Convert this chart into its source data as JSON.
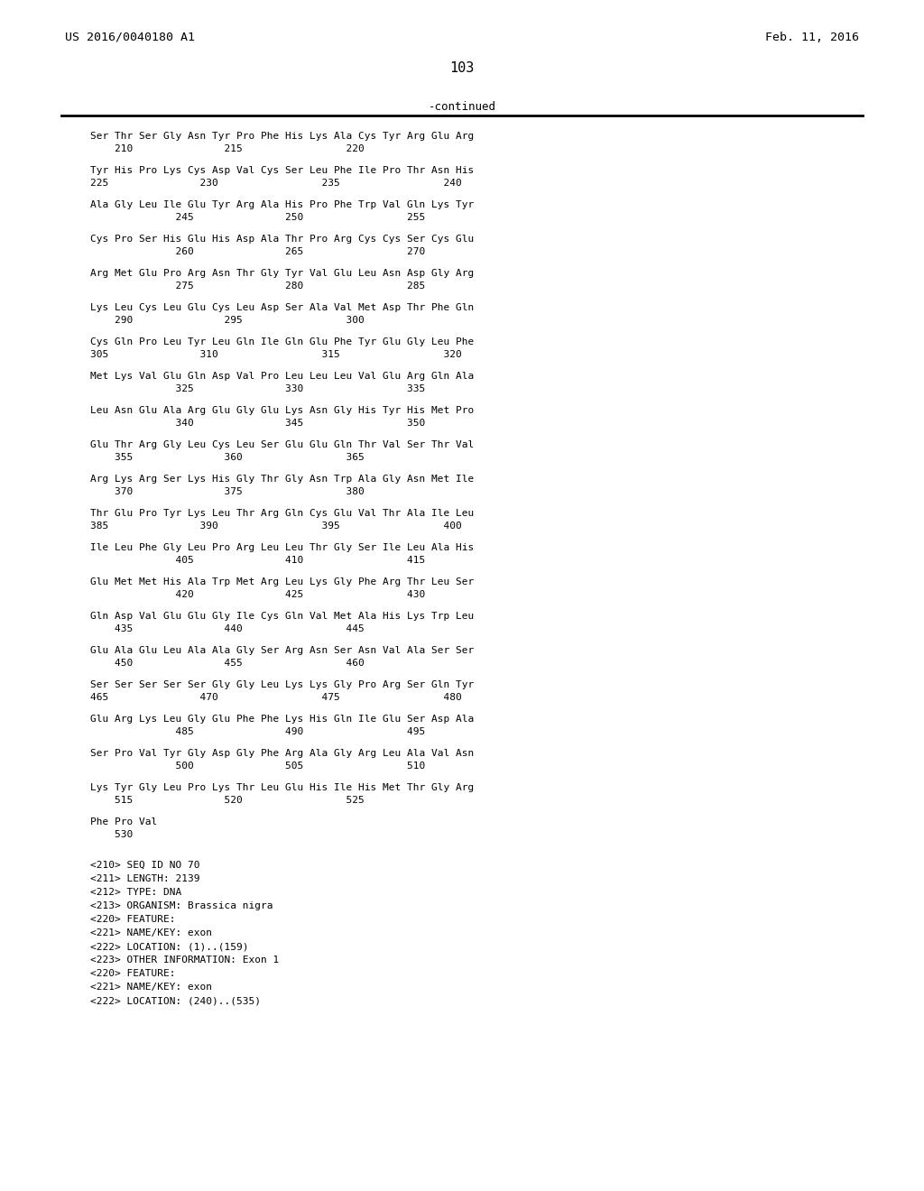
{
  "header_left": "US 2016/0040180 A1",
  "header_right": "Feb. 11, 2016",
  "page_number": "103",
  "continued_label": "-continued",
  "background_color": "#ffffff",
  "text_color": "#000000",
  "sequence_blocks": [
    [
      "Ser Thr Ser Gly Asn Tyr Pro Phe His Lys Ala Cys Tyr Arg Glu Arg",
      "    210               215                 220"
    ],
    [
      "Tyr His Pro Lys Cys Asp Val Cys Ser Leu Phe Ile Pro Thr Asn His",
      "225               230                 235                 240"
    ],
    [
      "Ala Gly Leu Ile Glu Tyr Arg Ala His Pro Phe Trp Val Gln Lys Tyr",
      "              245               250                 255"
    ],
    [
      "Cys Pro Ser His Glu His Asp Ala Thr Pro Arg Cys Cys Ser Cys Glu",
      "              260               265                 270"
    ],
    [
      "Arg Met Glu Pro Arg Asn Thr Gly Tyr Val Glu Leu Asn Asp Gly Arg",
      "              275               280                 285"
    ],
    [
      "Lys Leu Cys Leu Glu Cys Leu Asp Ser Ala Val Met Asp Thr Phe Gln",
      "    290               295                 300"
    ],
    [
      "Cys Gln Pro Leu Tyr Leu Gln Ile Gln Glu Phe Tyr Glu Gly Leu Phe",
      "305               310                 315                 320"
    ],
    [
      "Met Lys Val Glu Gln Asp Val Pro Leu Leu Leu Val Glu Arg Gln Ala",
      "              325               330                 335"
    ],
    [
      "Leu Asn Glu Ala Arg Glu Gly Glu Lys Asn Gly His Tyr His Met Pro",
      "              340               345                 350"
    ],
    [
      "Glu Thr Arg Gly Leu Cys Leu Ser Glu Glu Gln Thr Val Ser Thr Val",
      "    355               360                 365"
    ],
    [
      "Arg Lys Arg Ser Lys His Gly Thr Gly Asn Trp Ala Gly Asn Met Ile",
      "    370               375                 380"
    ],
    [
      "Thr Glu Pro Tyr Lys Leu Thr Arg Gln Cys Glu Val Thr Ala Ile Leu",
      "385               390                 395                 400"
    ],
    [
      "Ile Leu Phe Gly Leu Pro Arg Leu Leu Thr Gly Ser Ile Leu Ala His",
      "              405               410                 415"
    ],
    [
      "Glu Met Met His Ala Trp Met Arg Leu Lys Gly Phe Arg Thr Leu Ser",
      "              420               425                 430"
    ],
    [
      "Gln Asp Val Glu Glu Gly Ile Cys Gln Val Met Ala His Lys Trp Leu",
      "    435               440                 445"
    ],
    [
      "Glu Ala Glu Leu Ala Ala Gly Ser Arg Asn Ser Asn Val Ala Ser Ser",
      "    450               455                 460"
    ],
    [
      "Ser Ser Ser Ser Ser Gly Gly Leu Lys Lys Gly Pro Arg Ser Gln Tyr",
      "465               470                 475                 480"
    ],
    [
      "Glu Arg Lys Leu Gly Glu Phe Phe Lys His Gln Ile Glu Ser Asp Ala",
      "              485               490                 495"
    ],
    [
      "Ser Pro Val Tyr Gly Asp Gly Phe Arg Ala Gly Arg Leu Ala Val Asn",
      "              500               505                 510"
    ],
    [
      "Lys Tyr Gly Leu Pro Lys Thr Leu Glu His Ile His Met Thr Gly Arg",
      "    515               520                 525"
    ],
    [
      "Phe Pro Val",
      "    530"
    ]
  ],
  "metadata_lines": [
    "<210> SEQ ID NO 70",
    "<211> LENGTH: 2139",
    "<212> TYPE: DNA",
    "<213> ORGANISM: Brassica nigra",
    "<220> FEATURE:",
    "<221> NAME/KEY: exon",
    "<222> LOCATION: (1)..(159)",
    "<223> OTHER INFORMATION: Exon 1",
    "<220> FEATURE:",
    "<221> NAME/KEY: exon",
    "<222> LOCATION: (240)..(535)"
  ]
}
